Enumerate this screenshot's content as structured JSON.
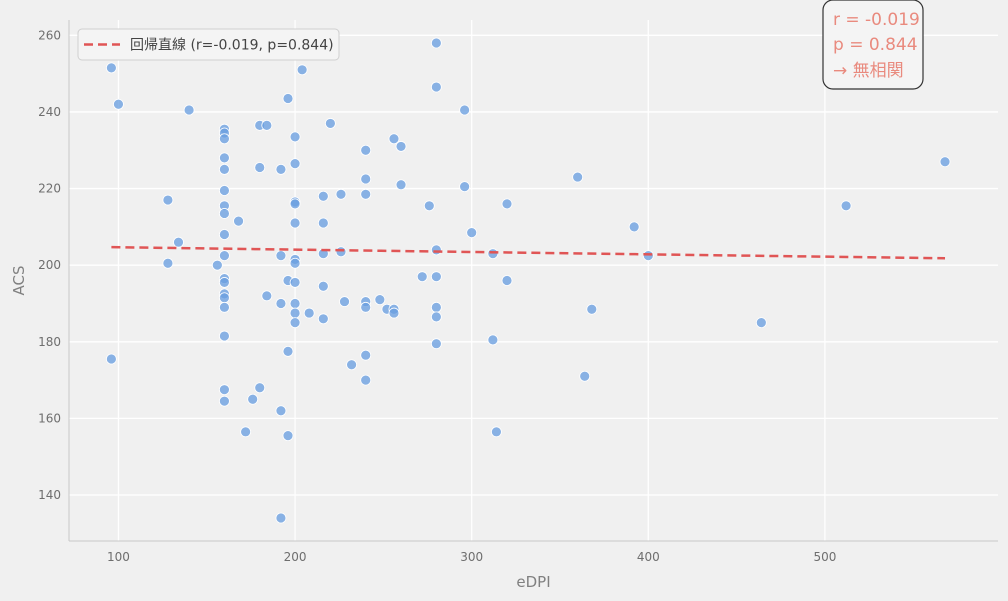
{
  "chart_data": {
    "type": "scatter",
    "xlabel": "eDPI",
    "ylabel": "ACS",
    "xlim": [
      72,
      598
    ],
    "ylim": [
      128,
      264
    ],
    "x_ticks": [
      100,
      200,
      300,
      400,
      500
    ],
    "y_ticks": [
      140,
      160,
      180,
      200,
      220,
      240,
      260
    ],
    "grid": true,
    "legend": "upper-left",
    "legend_label": "回帰直線 (r=-0.019, p=0.844)",
    "annotation": [
      "r = -0.019",
      "p = 0.844",
      "→ 無相関"
    ],
    "colors": {
      "points": "#6a9fe0",
      "regression": "#e05555",
      "annotation": "#e98a7e",
      "background": "#f0f0f0",
      "grid": "#ffffff"
    },
    "regression": {
      "x": [
        96,
        568
      ],
      "y": [
        204.7,
        201.8
      ]
    },
    "points": [
      [
        96,
        251.5
      ],
      [
        100,
        242
      ],
      [
        96,
        175.5
      ],
      [
        128,
        217
      ],
      [
        128,
        200.5
      ],
      [
        134,
        206
      ],
      [
        140,
        240.5
      ],
      [
        156,
        200
      ],
      [
        160,
        235.5
      ],
      [
        160,
        234.5
      ],
      [
        160,
        233
      ],
      [
        160,
        228
      ],
      [
        160,
        225
      ],
      [
        160,
        219.5
      ],
      [
        160,
        215.5
      ],
      [
        160,
        213.5
      ],
      [
        160,
        208
      ],
      [
        160,
        202.5
      ],
      [
        160,
        196.5
      ],
      [
        160,
        195.5
      ],
      [
        160,
        192.5
      ],
      [
        160,
        191.5
      ],
      [
        160,
        189
      ],
      [
        160,
        181.5
      ],
      [
        160,
        167.5
      ],
      [
        160,
        164.5
      ],
      [
        168,
        211.5
      ],
      [
        172,
        156.5
      ],
      [
        176,
        165
      ],
      [
        180,
        236.5
      ],
      [
        180,
        225.5
      ],
      [
        180,
        168
      ],
      [
        184,
        236.5
      ],
      [
        184,
        192
      ],
      [
        192,
        225
      ],
      [
        192,
        202.5
      ],
      [
        192,
        190
      ],
      [
        192,
        162
      ],
      [
        192,
        134
      ],
      [
        196,
        243.5
      ],
      [
        196,
        196
      ],
      [
        196,
        177.5
      ],
      [
        196,
        155.5
      ],
      [
        200,
        233.5
      ],
      [
        200,
        226.5
      ],
      [
        200,
        216.5
      ],
      [
        200,
        216
      ],
      [
        200,
        211
      ],
      [
        200,
        201.5
      ],
      [
        200,
        200.5
      ],
      [
        200,
        195.5
      ],
      [
        200,
        190
      ],
      [
        200,
        187.5
      ],
      [
        200,
        185
      ],
      [
        204,
        251
      ],
      [
        208,
        187.5
      ],
      [
        216,
        218
      ],
      [
        216,
        211
      ],
      [
        216,
        203
      ],
      [
        216,
        194.5
      ],
      [
        216,
        186
      ],
      [
        220,
        237
      ],
      [
        226,
        218.5
      ],
      [
        226,
        203.5
      ],
      [
        228,
        190.5
      ],
      [
        232,
        174
      ],
      [
        240,
        230
      ],
      [
        240,
        222.5
      ],
      [
        240,
        218.5
      ],
      [
        240,
        190.5
      ],
      [
        240,
        189
      ],
      [
        240,
        176.5
      ],
      [
        240,
        170
      ],
      [
        248,
        191
      ],
      [
        252,
        188.5
      ],
      [
        256,
        233
      ],
      [
        256,
        188.5
      ],
      [
        256,
        187.5
      ],
      [
        260,
        231
      ],
      [
        260,
        221
      ],
      [
        272,
        197
      ],
      [
        276,
        215.5
      ],
      [
        280,
        258
      ],
      [
        280,
        246.5
      ],
      [
        280,
        204
      ],
      [
        280,
        197
      ],
      [
        280,
        189
      ],
      [
        280,
        186.5
      ],
      [
        280,
        179.5
      ],
      [
        296,
        240.5
      ],
      [
        296,
        220.5
      ],
      [
        300,
        208.5
      ],
      [
        312,
        203
      ],
      [
        312,
        180.5
      ],
      [
        314,
        156.5
      ],
      [
        320,
        216
      ],
      [
        320,
        196
      ],
      [
        360,
        223
      ],
      [
        364,
        171
      ],
      [
        368,
        188.5
      ],
      [
        392,
        210
      ],
      [
        400,
        202.5
      ],
      [
        464,
        185
      ],
      [
        512,
        215.5
      ],
      [
        568,
        227
      ]
    ]
  }
}
